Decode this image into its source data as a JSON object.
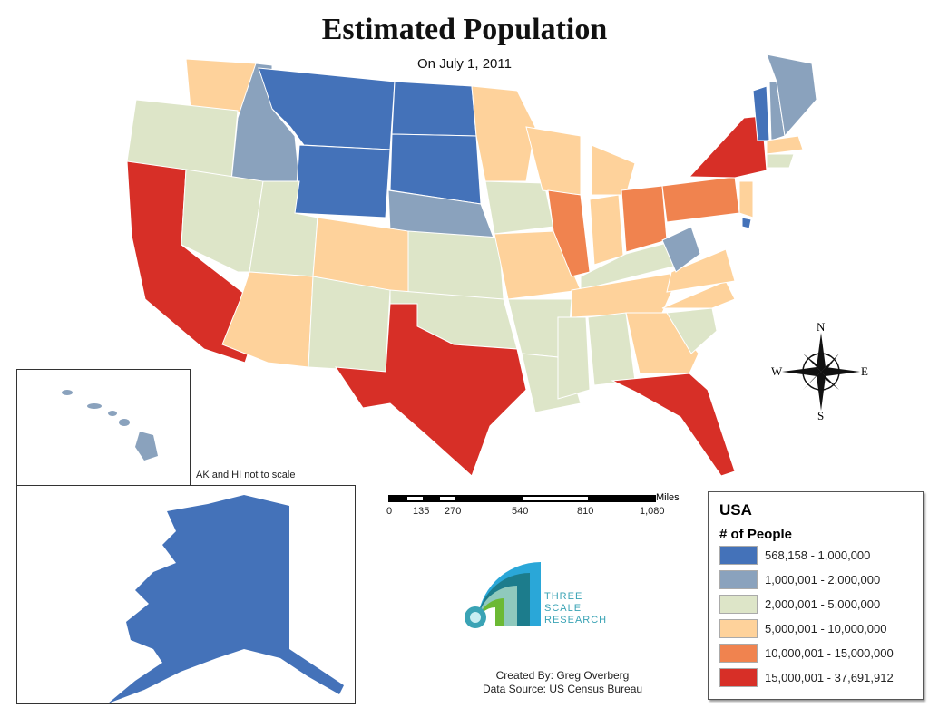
{
  "title": "Estimated Population",
  "subtitle": "On July 1, 2011",
  "inset_note": "AK and HI not to scale",
  "compass": {
    "n": "N",
    "s": "S",
    "e": "E",
    "w": "W"
  },
  "scale_bar": {
    "unit": "Miles",
    "ticks": [
      "0",
      "135",
      "270",
      "540",
      "810",
      "1,080"
    ]
  },
  "logo": {
    "line1": "THREE",
    "line2": "SCALE",
    "line3": "RESEARCH"
  },
  "credits": {
    "created_by": "Created By: Greg Overberg",
    "source": "Data Source: US Census Bureau"
  },
  "legend": {
    "title": "USA",
    "subtitle": "# of People",
    "classes": [
      {
        "label": "568,158 - 1,000,000",
        "color": "#4472b9"
      },
      {
        "label": "1,000,001 - 2,000,000",
        "color": "#8aa2bd"
      },
      {
        "label": "2,000,001 - 5,000,000",
        "color": "#dde5c8"
      },
      {
        "label": "5,000,001 - 10,000,000",
        "color": "#fed29b"
      },
      {
        "label": "10,000,001 - 15,000,000",
        "color": "#f0834f"
      },
      {
        "label": "15,000,001 - 37,691,912",
        "color": "#d72f27"
      }
    ]
  }
}
